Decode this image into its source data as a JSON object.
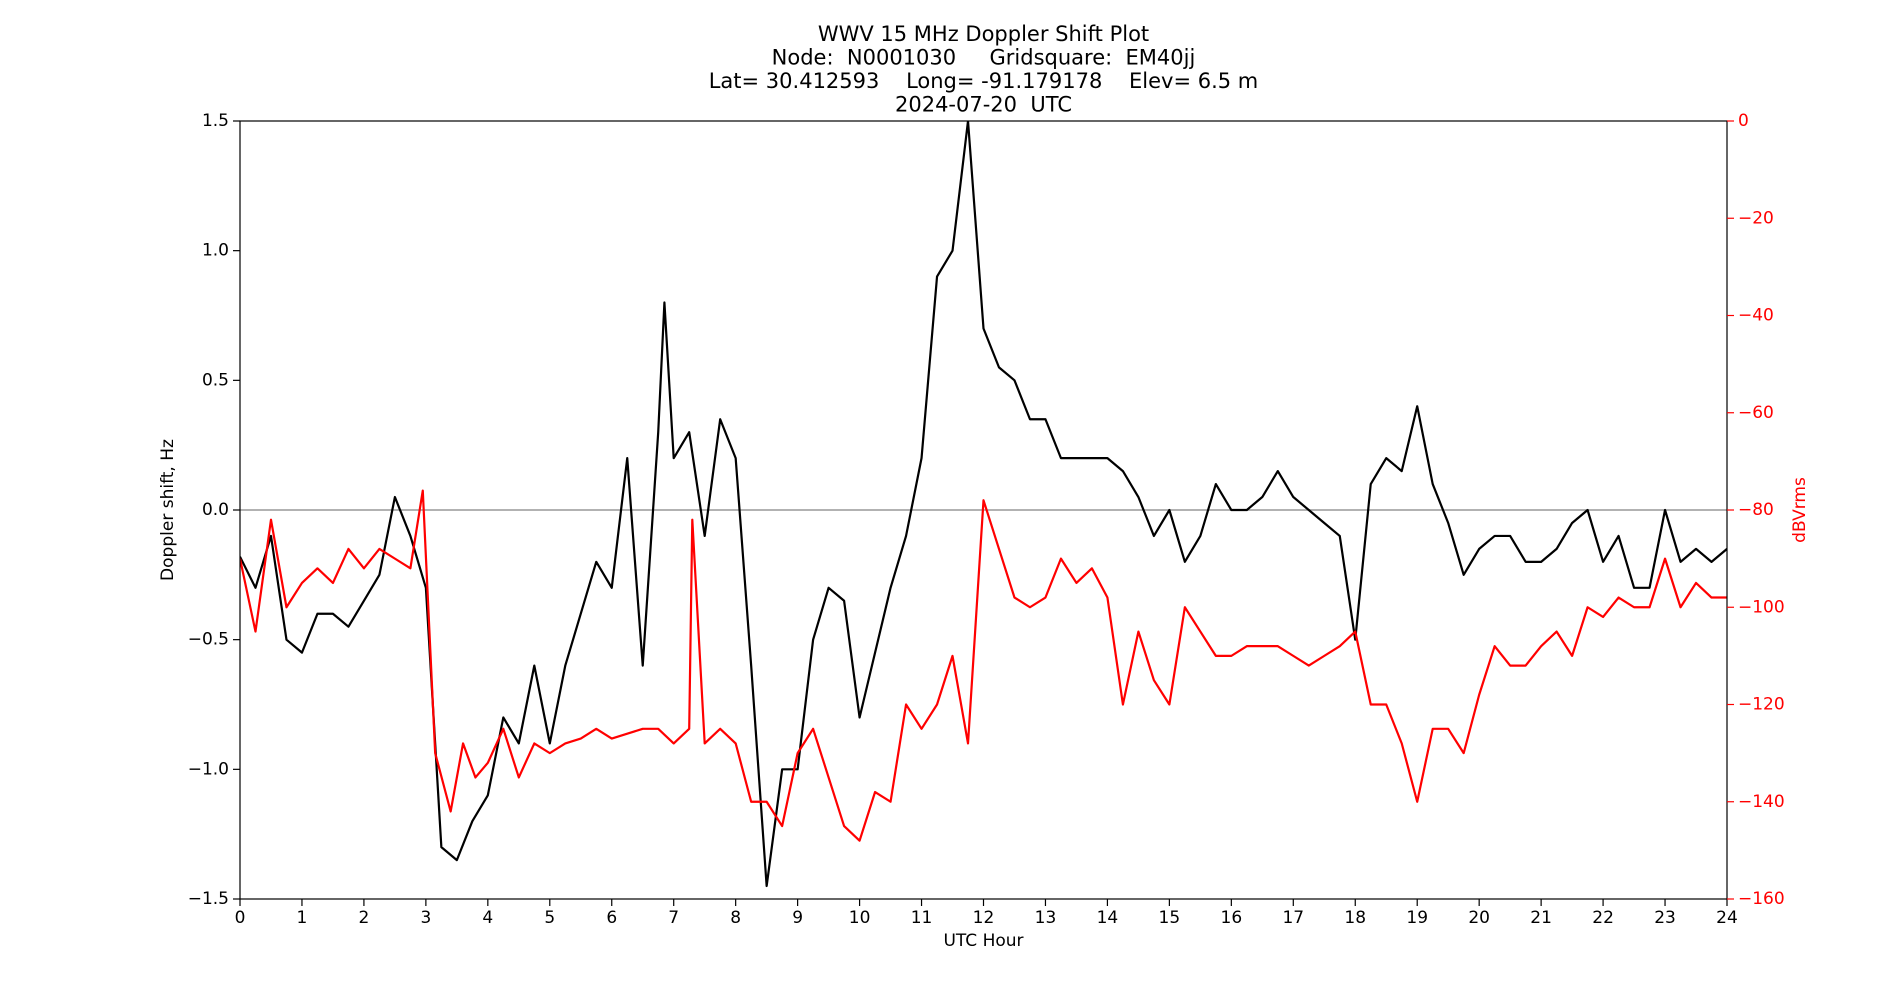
{
  "chart_data": {
    "type": "line",
    "title": [
      "WWV 15 MHz Doppler Shift Plot",
      "Node:  N0001030     Gridsquare:  EM40jj",
      "Lat= 30.412593    Long= -91.179178    Elev= 6.5 m",
      "2024-07-20  UTC"
    ],
    "xlabel": "UTC Hour",
    "ylabel": "Doppler shift, Hz",
    "y2label": "dBVrms",
    "y2color": "#ff0000",
    "xlim": [
      0,
      24
    ],
    "xticks": [
      0,
      1,
      2,
      3,
      4,
      5,
      6,
      7,
      8,
      9,
      10,
      11,
      12,
      13,
      14,
      15,
      16,
      17,
      18,
      19,
      20,
      21,
      22,
      23,
      24
    ],
    "ylim": [
      -1.5,
      1.5
    ],
    "yticks": [
      {
        "value": -1.5,
        "label": "−1.5"
      },
      {
        "value": -1.0,
        "label": "−1.0"
      },
      {
        "value": -0.5,
        "label": "−0.5"
      },
      {
        "value": 0.0,
        "label": "0.0"
      },
      {
        "value": 0.5,
        "label": "0.5"
      },
      {
        "value": 1.0,
        "label": "1.0"
      },
      {
        "value": 1.5,
        "label": "1.5"
      }
    ],
    "y2lim": [
      -160,
      0
    ],
    "y2ticks": [
      {
        "value": -160,
        "label": "−160"
      },
      {
        "value": -140,
        "label": "−140"
      },
      {
        "value": -120,
        "label": "−120"
      },
      {
        "value": -100,
        "label": "−100"
      },
      {
        "value": -80,
        "label": "−80"
      },
      {
        "value": -60,
        "label": "−60"
      },
      {
        "value": -40,
        "label": "−40"
      },
      {
        "value": -20,
        "label": "−20"
      },
      0
    ],
    "reference_line": 0,
    "series": [
      {
        "color": "#000000",
        "x": [
          0,
          0.25,
          0.5,
          0.75,
          1,
          1.25,
          1.5,
          1.75,
          2,
          2.25,
          2.5,
          2.75,
          3,
          3.25,
          3.5,
          3.75,
          4,
          4.25,
          4.5,
          4.75,
          5,
          5.25,
          5.5,
          5.75,
          6,
          6.25,
          6.5,
          6.75,
          6.85,
          7,
          7.25,
          7.5,
          7.75,
          8,
          8.25,
          8.5,
          8.75,
          9,
          9.25,
          9.5,
          9.75,
          10,
          10.25,
          10.5,
          10.75,
          11,
          11.25,
          11.5,
          11.75,
          12,
          12.25,
          12.5,
          12.75,
          13,
          13.25,
          13.5,
          13.75,
          14,
          14.25,
          14.5,
          14.75,
          15,
          15.25,
          15.5,
          15.75,
          16,
          16.25,
          16.5,
          16.75,
          17,
          17.25,
          17.5,
          17.75,
          18,
          18.25,
          18.5,
          18.75,
          19,
          19.25,
          19.5,
          19.75,
          20,
          20.25,
          20.5,
          20.75,
          21,
          21.25,
          21.5,
          21.75,
          22,
          22.25,
          22.5,
          22.75,
          23,
          23.25,
          23.5,
          23.75,
          24
        ],
        "values": [
          -0.18,
          -0.3,
          -0.1,
          -0.5,
          -0.55,
          -0.4,
          -0.4,
          -0.45,
          -0.35,
          -0.25,
          0.05,
          -0.1,
          -0.3,
          -1.3,
          -1.35,
          -1.2,
          -1.1,
          -0.8,
          -0.9,
          -0.6,
          -0.9,
          -0.6,
          -0.4,
          -0.2,
          -0.3,
          0.2,
          -0.6,
          0.3,
          0.8,
          0.2,
          0.3,
          -0.1,
          0.35,
          0.2,
          -0.6,
          -1.45,
          -1.0,
          -1.0,
          -0.5,
          -0.3,
          -0.35,
          -0.8,
          -0.55,
          -0.3,
          -0.1,
          0.2,
          0.9,
          1.0,
          1.5,
          0.7,
          0.55,
          0.5,
          0.35,
          0.35,
          0.2,
          0.2,
          0.2,
          0.2,
          0.15,
          0.05,
          -0.1,
          0.0,
          -0.2,
          -0.1,
          0.1,
          0.0,
          0.0,
          0.05,
          0.15,
          0.05,
          0.0,
          -0.05,
          -0.1,
          -0.5,
          0.1,
          0.2,
          0.15,
          0.4,
          0.1,
          -0.05,
          -0.25,
          -0.15,
          -0.1,
          -0.1,
          -0.2,
          -0.2,
          -0.15,
          -0.05,
          0.0,
          -0.2,
          -0.1,
          -0.3,
          -0.3,
          0.0,
          -0.2,
          -0.15,
          -0.2,
          -0.15
        ]
      },
      {
        "color": "#ff0000",
        "axis": "y2",
        "x": [
          0,
          0.25,
          0.5,
          0.75,
          1,
          1.25,
          1.5,
          1.75,
          2,
          2.25,
          2.5,
          2.75,
          2.95,
          3.15,
          3.4,
          3.6,
          3.8,
          4,
          4.25,
          4.5,
          4.75,
          5,
          5.25,
          5.5,
          5.75,
          6,
          6.25,
          6.5,
          6.75,
          7,
          7.25,
          7.3,
          7.5,
          7.75,
          8,
          8.25,
          8.5,
          8.75,
          9,
          9.25,
          9.5,
          9.75,
          10,
          10.25,
          10.5,
          10.75,
          11,
          11.25,
          11.5,
          11.75,
          12,
          12.25,
          12.5,
          12.75,
          13,
          13.25,
          13.5,
          13.75,
          14,
          14.25,
          14.5,
          14.75,
          15,
          15.25,
          15.5,
          15.75,
          16,
          16.25,
          16.5,
          16.75,
          17,
          17.25,
          17.5,
          17.75,
          18,
          18.25,
          18.5,
          18.75,
          19,
          19.25,
          19.5,
          19.75,
          20,
          20.25,
          20.5,
          20.75,
          21,
          21.25,
          21.5,
          21.75,
          22,
          22.25,
          22.5,
          22.75,
          23,
          23.25,
          23.5,
          23.75,
          24
        ],
        "values": [
          -90,
          -105,
          -82,
          -100,
          -95,
          -92,
          -95,
          -88,
          -92,
          -88,
          -90,
          -92,
          -76,
          -130,
          -142,
          -128,
          -135,
          -132,
          -125,
          -135,
          -128,
          -130,
          -128,
          -127,
          -125,
          -127,
          -126,
          -125,
          -125,
          -128,
          -125,
          -82,
          -128,
          -125,
          -128,
          -140,
          -140,
          -145,
          -130,
          -125,
          -135,
          -145,
          -148,
          -138,
          -140,
          -120,
          -125,
          -120,
          -110,
          -128,
          -78,
          -88,
          -98,
          -100,
          -98,
          -90,
          -95,
          -92,
          -98,
          -120,
          -105,
          -115,
          -120,
          -100,
          -105,
          -110,
          -110,
          -108,
          -108,
          -108,
          -110,
          -112,
          -110,
          -108,
          -105,
          -120,
          -120,
          -128,
          -140,
          -125,
          -125,
          -130,
          -118,
          -108,
          -112,
          -112,
          -108,
          -105,
          -110,
          -100,
          -102,
          -98,
          -100,
          -100,
          -90,
          -100,
          -95,
          -98,
          -98
        ]
      }
    ]
  }
}
